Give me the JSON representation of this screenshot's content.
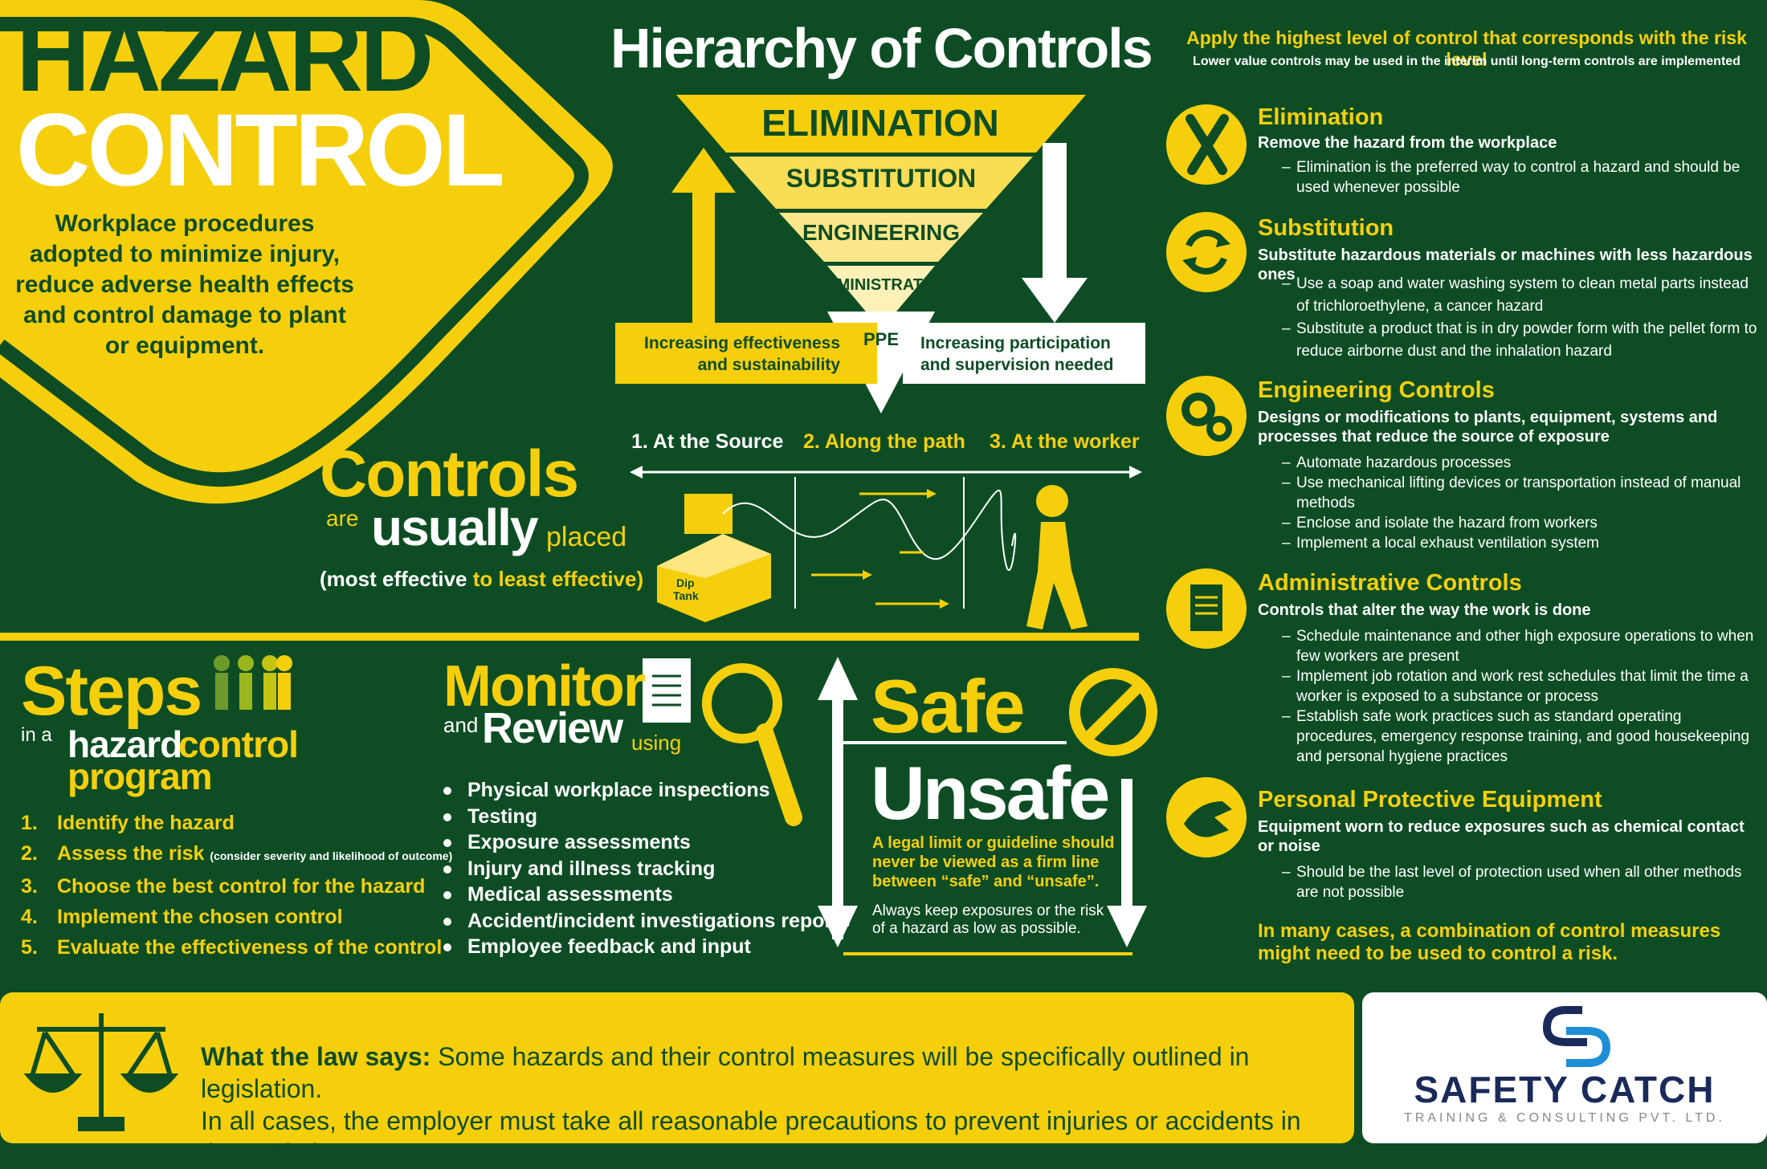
{
  "hazard": {
    "title_line1": "HAZARD",
    "title_line2": "CONTROL",
    "description": "Workplace procedures adopted to minimize injury, reduce adverse health effects and control damage to plant or equipment."
  },
  "hierarchy": {
    "title": "Hierarchy of Controls",
    "levels": [
      "ELIMINATION",
      "SUBSTITUTION",
      "ENGINEERING",
      "ADMINISTRATIVE",
      "PPE"
    ],
    "left_label": "Increasing effectiveness and sustainability",
    "right_label": "Increasing participation and supervision needed"
  },
  "placement": {
    "stages": [
      "1. At the Source",
      "2. Along the path",
      "3. At the worker"
    ],
    "word_controls": "Controls",
    "word_are": "are",
    "word_usually": "usually",
    "word_placed": "placed",
    "note_white": "(most effective",
    "note_yellow": "to least effective)",
    "tank_label_1": "Dip",
    "tank_label_2": "Tank"
  },
  "steps": {
    "title": "Steps",
    "in_a": "in a",
    "hazard": "hazard",
    "control": "control",
    "program": "program",
    "items": [
      {
        "num": "1.",
        "text": "Identify the hazard",
        "note": ""
      },
      {
        "num": "2.",
        "text": "Assess the risk",
        "note": "(consider severity and likelihood of outcome)"
      },
      {
        "num": "3.",
        "text": "Choose the best control for the hazard",
        "note": ""
      },
      {
        "num": "4.",
        "text": "Implement the chosen control",
        "note": ""
      },
      {
        "num": "5.",
        "text": "Evaluate the effectiveness of the control",
        "note": ""
      }
    ]
  },
  "monitor": {
    "word_monitor": "Monitor",
    "word_and": "and",
    "word_review": "Review",
    "word_using": "using",
    "items": [
      "Physical workplace inspections",
      "Testing",
      "Exposure assessments",
      "Injury and illness tracking",
      "Medical assessments",
      "Accident/incident investigations reports",
      "Employee feedback and input"
    ]
  },
  "safe": {
    "safe": "Safe",
    "unsafe": "Unsafe",
    "legal_note": "A legal limit or guideline should never be viewed as a firm line between “safe” and “unsafe”.",
    "keep_note": "Always keep exposures or the risk of a hazard as low as possible."
  },
  "right": {
    "headline": "Apply the highest level of control that corresponds with the risk level",
    "subline": "Lower value controls may be used in the interim until long-term controls are implemented",
    "sections": [
      {
        "title": "Elimination",
        "subtitle": "Remove the hazard from the workplace",
        "items": [
          "Elimination is the preferred way to control a hazard and should be used whenever possible"
        ]
      },
      {
        "title": "Substitution",
        "subtitle": "Substitute hazardous materials or machines with less hazardous ones",
        "items": [
          "Use a soap and water washing system to clean metal parts instead of trichloroethylene, a cancer hazard",
          "Substitute a product that is in dry powder form with the pellet form to reduce airborne dust and the inhalation hazard"
        ]
      },
      {
        "title": "Engineering Controls",
        "subtitle": "Designs or modifications to plants, equipment, systems and processes that reduce the source of exposure",
        "items": [
          "Automate hazardous processes",
          "Use mechanical lifting devices or transportation instead of manual methods",
          "Enclose  and isolate the hazard from workers",
          "Implement a local exhaust ventilation system"
        ]
      },
      {
        "title": "Administrative Controls",
        "subtitle": "Controls that alter the way the work is done",
        "items": [
          "Schedule maintenance and other high exposure operations to when few workers are present",
          "Implement job rotation and work rest schedules that limit the time a worker is exposed to a substance or process",
          "Establish safe work practices such as standard operating procedures, emergency response training, and good housekeeping and personal hygiene practices"
        ]
      },
      {
        "title": "Personal Protective Equipment",
        "subtitle": "Equipment worn to reduce exposures such as chemical contact or noise",
        "items": [
          "Should be the last level of protection used when all other methods are not possible"
        ]
      }
    ],
    "conclusion": "In many cases, a combination of control measures might need to be used to control a risk."
  },
  "law": {
    "lead": "What the law says:",
    "line1": "Some hazards and their control measures will be specifically outlined in legislation.",
    "line2": "In all cases, the employer must take all reasonable precautions to prevent injuries or accidents in the workplace."
  },
  "brand": {
    "name": "SAFETY CATCH",
    "tagline": "TRAINING & CONSULTING PVT. LTD."
  },
  "colors": {
    "green": "#0e4d24",
    "yellow": "#f5cf0c",
    "white": "#ffffff",
    "blue": "#1e8fd6",
    "navy": "#1a2a5a"
  }
}
